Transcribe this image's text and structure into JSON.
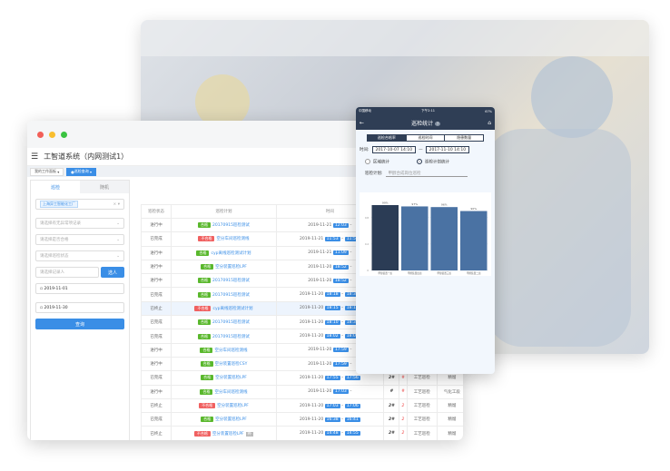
{
  "desktop": {
    "app_title": "工智道系统（内网测试1）",
    "tabs": [
      {
        "label": "我的工作面板"
      },
      {
        "label": "巡检查询",
        "active": true
      }
    ],
    "left_panel": {
      "tabs": [
        "巡检",
        "随机"
      ],
      "factory_chip": "上海异工智能化工厂",
      "abnormal_placeholder": "请选择有无异常项记录",
      "qualified_placeholder": "请选择是否合格",
      "status_placeholder": "请选择巡检状态",
      "recorder_placeholder": "请选择记录人",
      "select_button": "选人",
      "start_date": "2019-11-01",
      "end_date": "2019-11-30",
      "query_button": "查询"
    },
    "table": {
      "headers": [
        "巡检状态",
        "巡检计划",
        "时间",
        "填写",
        "",
        "",
        ""
      ],
      "rows": [
        {
          "status": "进行中",
          "result": "合格",
          "plan": "20170915巡检测试",
          "date": "2019-11-21",
          "start": "12:03",
          "end": "",
          "fill": "#",
          "c5": "",
          "c6": "",
          "c7": ""
        },
        {
          "status": "已完成",
          "result": "不合格",
          "plan": "空分车间巡检测线",
          "date": "2019-11-21",
          "start": "11:53",
          "end": "11:58",
          "fill": "#",
          "c5": "",
          "c6": "",
          "c7": ""
        },
        {
          "status": "进行中",
          "result": "合格",
          "plan": "cyp离线巡检测试计划",
          "date": "2019-11-21",
          "start": "11:09",
          "end": "",
          "fill": "#",
          "c5": "",
          "c6": "",
          "c7": ""
        },
        {
          "status": "进行中",
          "result": "合格",
          "plan": "空分装置巡检LPF",
          "date": "2019-11-20",
          "start": "18:52",
          "end": "",
          "fill": "#",
          "c5": "",
          "c6": "",
          "c7": ""
        },
        {
          "status": "进行中",
          "result": "合格",
          "plan": "20170915巡检测试",
          "date": "2019-11-20",
          "start": "18:52",
          "end": "",
          "fill": "#",
          "c5": "",
          "c6": "",
          "c7": ""
        },
        {
          "status": "已完成",
          "result": "合格",
          "plan": "20170915巡检测试",
          "date": "2019-11-20",
          "start": "18:18",
          "end": "18:39",
          "fill": "2#",
          "c5": "",
          "c6": "",
          "c7": ""
        },
        {
          "status": "已终止",
          "result": "不合格",
          "plan": "cyp离线巡检测试计划",
          "date": "2019-11-20",
          "start": "18:15",
          "end": "18:17",
          "fill": "#",
          "c5": "",
          "c6": "",
          "c7": "",
          "highlight": true
        },
        {
          "status": "已完成",
          "result": "合格",
          "plan": "20170915巡检测试",
          "date": "2019-11-20",
          "start": "18:10",
          "end": "18:31",
          "fill": "2#",
          "c5": "",
          "c6": "",
          "c7": ""
        },
        {
          "status": "已完成",
          "result": "合格",
          "plan": "20170915巡检测试",
          "date": "2019-11-20",
          "start": "18:02",
          "end": "18:06",
          "fill": "2#",
          "c5": "",
          "c6": "",
          "c7": ""
        },
        {
          "status": "进行中",
          "result": "合格",
          "plan": "空分车间巡检测线",
          "date": "2019-11-20",
          "start": "17:59",
          "end": "",
          "fill": "#",
          "c5": "",
          "c6": "",
          "c7": ""
        },
        {
          "status": "进行中",
          "result": "合格",
          "plan": "空分装置巡检CSY",
          "date": "2019-11-20",
          "start": "17:59",
          "end": "",
          "fill": "#",
          "c5": "",
          "c6": "",
          "c7": ""
        },
        {
          "status": "已完成",
          "result": "合格",
          "plan": "空分装置巡检LPF",
          "date": "2019-11-20",
          "start": "17:55",
          "end": "17:56",
          "fill": "2#",
          "c5": "#",
          "c6": "工艺巡检",
          "c7": "精馏"
        },
        {
          "status": "进行中",
          "result": "合格",
          "plan": "空分车间巡检测线",
          "date": "2019-11-20",
          "start": "17:03",
          "end": "",
          "fill": "#",
          "c5": "#",
          "c6": "工艺巡检",
          "c7": "气化工段"
        },
        {
          "status": "已终止",
          "result": "不合格",
          "plan": "空分装置巡检LPF",
          "date": "2019-11-20",
          "start": "17:03",
          "end": "17:06",
          "fill": "2#",
          "c5": "2",
          "c6": "工艺巡检",
          "c7": "精馏"
        },
        {
          "status": "已完成",
          "result": "合格",
          "plan": "空分装置巡检LPF",
          "date": "2019-11-20",
          "start": "16:38",
          "end": "16:41",
          "fill": "2#",
          "c5": "2",
          "c6": "工艺巡检",
          "c7": "精馏"
        },
        {
          "status": "已终止",
          "result": "不合格",
          "plan": "空分装置巡检LPF",
          "badge": "补",
          "date": "2019-11-20",
          "start": "14:48",
          "end": "14:55",
          "fill": "2#",
          "c5": "2",
          "c6": "工艺巡检",
          "c7": "精馏"
        }
      ]
    }
  },
  "phone": {
    "status_bar": {
      "carrier": "中国移动",
      "time": "下午2:11",
      "battery": "67%"
    },
    "title": "巡检统计",
    "help": "?",
    "segments": [
      "巡检合格率",
      "巡检时间",
      "隐患数量"
    ],
    "time_label": "时间:",
    "date_from": "2017-10-07 14:10",
    "date_sep": "—",
    "date_to": "2017-11-10 14:10",
    "radio_area": "区域统计",
    "radio_plan": "巡检计划统计",
    "plan_label": "巡检计划:",
    "plan_value": "甲醇合成岗位巡检"
  },
  "chart_data": {
    "type": "bar",
    "categories": [
      "甲醇装置一班",
      "甲醇装置四班",
      "甲醇装置三班",
      "甲醇装置二班"
    ],
    "values": [
      0.99,
      0.97,
      0.96,
      0.9
    ],
    "data_labels": [
      "99%",
      "97%",
      "96%",
      "90%"
    ],
    "yticks": [
      "0",
      "0.4",
      "0.8"
    ],
    "ylim": [
      0,
      1.1
    ],
    "colors": [
      "#2b3c55",
      "#4a72a3",
      "#4a72a3",
      "#4a72a3"
    ],
    "grid": true
  },
  "colors": {
    "accent": "#3a8ee6",
    "pass": "#5ab82d",
    "fail": "#f06060",
    "navy": "#2f3e55"
  }
}
